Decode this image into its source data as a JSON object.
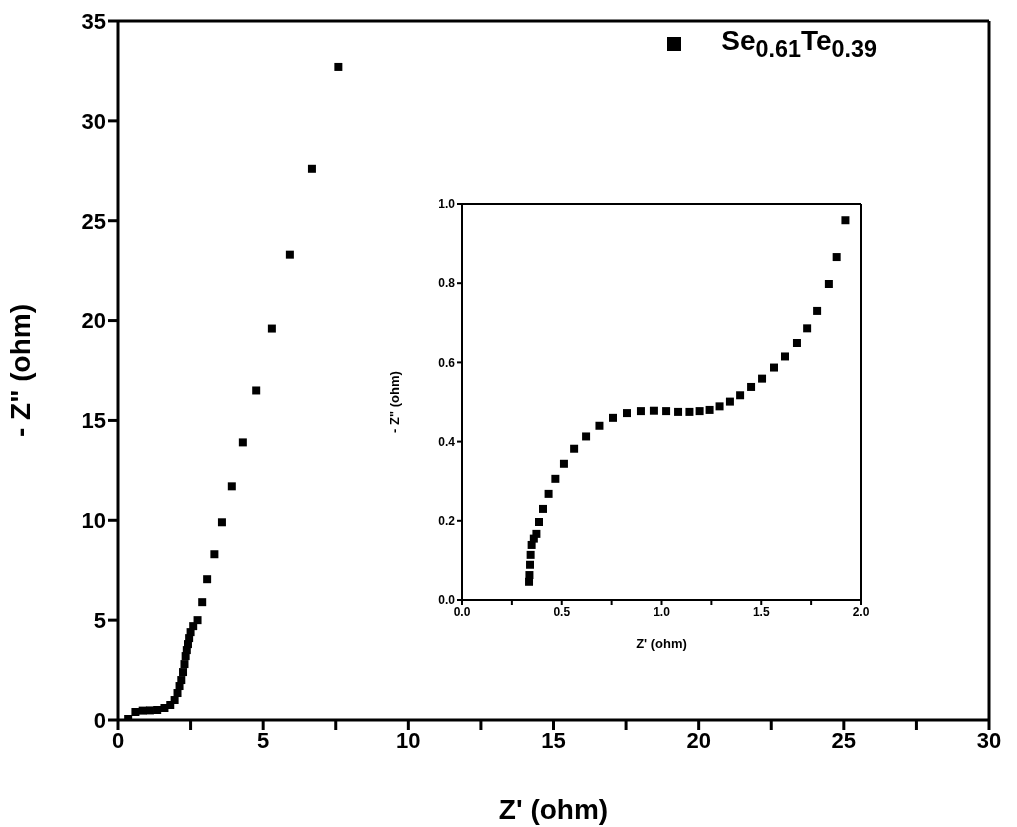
{
  "chart_data": [
    {
      "type": "scatter",
      "xlabel": "Z' (ohm)",
      "ylabel": "- Z\" (ohm)",
      "marker": "square",
      "legend": "top right",
      "xlim": [
        0,
        30
      ],
      "xticks": [
        0,
        {
          "value": 2.5,
          "label": null
        },
        5,
        {
          "value": 7.5,
          "label": null
        },
        10,
        {
          "value": 12.5,
          "label": null
        },
        15,
        {
          "value": 17.5,
          "label": null
        },
        20,
        {
          "value": 22.5,
          "label": null
        },
        25,
        {
          "value": 27.5,
          "label": null
        },
        30
      ],
      "ylim": [
        0,
        35
      ],
      "yticks": [
        0,
        5,
        10,
        15,
        20,
        25,
        30,
        35
      ],
      "series": [
        {
          "name": "Se$_{0.61}$Te$_{0.39}$",
          "color": "#000000",
          "x": [
            0.35,
            0.6,
            0.85,
            1.1,
            1.35,
            1.6,
            1.8,
            1.95,
            2.05,
            2.12,
            2.18,
            2.24,
            2.29,
            2.33,
            2.37,
            2.41,
            2.45,
            2.5,
            2.59,
            2.74,
            2.9,
            3.07,
            3.32,
            3.58,
            3.92,
            4.3,
            4.76,
            5.3,
            5.92,
            6.68,
            7.59
          ],
          "values": [
            0.05,
            0.4,
            0.47,
            0.48,
            0.5,
            0.6,
            0.75,
            1.0,
            1.35,
            1.7,
            2.0,
            2.4,
            2.8,
            3.2,
            3.5,
            3.8,
            4.1,
            4.4,
            4.7,
            5.0,
            5.9,
            7.05,
            8.3,
            9.9,
            11.7,
            13.9,
            16.5,
            19.6,
            23.3,
            27.6,
            32.7
          ]
        }
      ]
    },
    {
      "type": "scatter",
      "xlabel": "Z' (ohm)",
      "ylabel": "- Z\" (ohm)",
      "marker": "square",
      "xlim": [
        0,
        2
      ],
      "xticks": [
        {
          "value": 0,
          "label": "0.0"
        },
        {
          "value": 0.25,
          "label": null
        },
        {
          "value": 0.5,
          "label": "0.5"
        },
        {
          "value": 0.75,
          "label": null
        },
        {
          "value": 1,
          "label": "1.0"
        },
        {
          "value": 1.25,
          "label": null
        },
        {
          "value": 1.5,
          "label": "1.5"
        },
        {
          "value": 1.75,
          "label": null
        },
        {
          "value": 2,
          "label": "2.0"
        }
      ],
      "ylim": [
        0,
        1
      ],
      "yticks": [
        {
          "value": 0,
          "label": "0.0"
        },
        {
          "value": 0.2,
          "label": "0.2"
        },
        {
          "value": 0.4,
          "label": "0.4"
        },
        {
          "value": 0.6,
          "label": "0.6"
        },
        {
          "value": 0.8,
          "label": "0.8"
        },
        {
          "value": 1,
          "label": "1.0"
        }
      ],
      "series": [
        {
          "color": "#000000",
          "x": [
            0.336,
            0.338,
            0.341,
            0.344,
            0.349,
            0.36,
            0.373,
            0.386,
            0.406,
            0.434,
            0.468,
            0.511,
            0.562,
            0.622,
            0.689,
            0.757,
            0.827,
            0.897,
            0.962,
            1.023,
            1.083,
            1.14,
            1.191,
            1.241,
            1.291,
            1.343,
            1.394,
            1.449,
            1.504,
            1.564,
            1.619,
            1.679,
            1.73,
            1.78,
            1.839,
            1.878,
            1.922
          ],
          "values": [
            0.046,
            0.063,
            0.089,
            0.114,
            0.139,
            0.155,
            0.167,
            0.197,
            0.23,
            0.268,
            0.306,
            0.344,
            0.382,
            0.413,
            0.44,
            0.46,
            0.472,
            0.477,
            0.478,
            0.477,
            0.475,
            0.475,
            0.477,
            0.48,
            0.489,
            0.501,
            0.517,
            0.538,
            0.559,
            0.587,
            0.615,
            0.649,
            0.686,
            0.73,
            0.798,
            0.866,
            0.959
          ]
        }
      ]
    }
  ]
}
